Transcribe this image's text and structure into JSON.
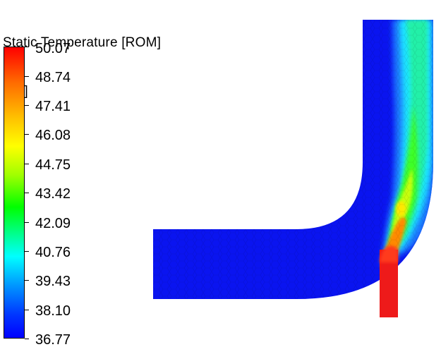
{
  "legend": {
    "title_line1": "Static Temperature [ROM]",
    "title_line2": "[ C ]",
    "ticks": [
      "50.07",
      "48.74",
      "47.41",
      "46.08",
      "44.75",
      "43.42",
      "42.09",
      "40.76",
      "39.43",
      "38.10",
      "36.77"
    ],
    "min": 36.77,
    "max": 50.07
  },
  "colors": {
    "cold": "#0a14f0",
    "hot": "#ee1a1a",
    "scale": [
      "#0000ff",
      "#0036ff",
      "#0096ff",
      "#00ffff",
      "#00ff8a",
      "#00ff00",
      "#a0ff00",
      "#ffff00",
      "#ffbf00",
      "#ff6a00",
      "#ff0000"
    ]
  }
}
